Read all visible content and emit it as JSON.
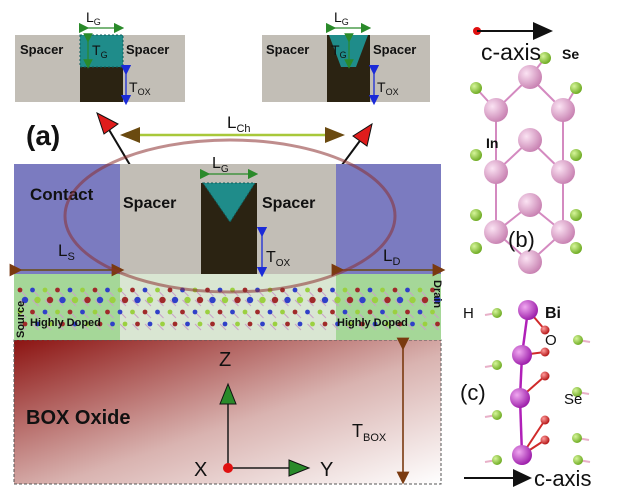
{
  "panels": {
    "a": "(a)",
    "b": "(b)",
    "c": "(c)"
  },
  "inset_left": {
    "spacer_left": "Spacer",
    "spacer_right": "Spacer",
    "lg": "L",
    "lg_sub": "G",
    "tg": "T",
    "tg_sub": "G",
    "tox": "T",
    "tox_sub": "OX"
  },
  "inset_right": {
    "spacer_left": "Spacer",
    "spacer_right": "Spacer",
    "lg": "L",
    "lg_sub": "G",
    "tg": "T",
    "tg_sub": "G",
    "tox": "T",
    "tox_sub": "OX"
  },
  "device": {
    "lch": "L",
    "lch_sub": "Ch",
    "lg": "L",
    "lg_sub": "G",
    "contact": "Contact",
    "spacer_left": "Spacer",
    "spacer_right": "Spacer",
    "tox": "T",
    "tox_sub": "OX",
    "ls": "L",
    "ls_sub": "S",
    "ld": "L",
    "ld_sub": "D",
    "source": "Source",
    "drain": "Drain",
    "doped_left": "Highly Doped",
    "doped_right": "Highly Doped",
    "box": "BOX Oxide",
    "tbox": "T",
    "tbox_sub": "BOX",
    "axis_z": "Z",
    "axis_x": "X",
    "axis_y": "Y"
  },
  "structure_b": {
    "c_axis": "c-axis",
    "se": "Se",
    "in": "In"
  },
  "structure_c": {
    "h": "H",
    "bi": "Bi",
    "o": "O",
    "se": "Se",
    "c_axis": "c-axis"
  },
  "colors": {
    "spacer": "#c2beb6",
    "gate_metal": "#2b2312",
    "gate_cap": "#1f8c8a",
    "contact": "#7b7bc0",
    "box_dark": "#8c1412",
    "doped": "#9bd48e",
    "in_atom": "#e6a0d0",
    "se_atom": "#8fd23a",
    "bi_atom": "#c040c8",
    "o_atom": "#d02a2a",
    "arrow_red": "#e01c1c",
    "arrow_green": "#2a8a2a",
    "arrow_blue": "#1a2ad8",
    "arrow_brown": "#7a3a10",
    "lch_arrow": "#a8c83a"
  }
}
